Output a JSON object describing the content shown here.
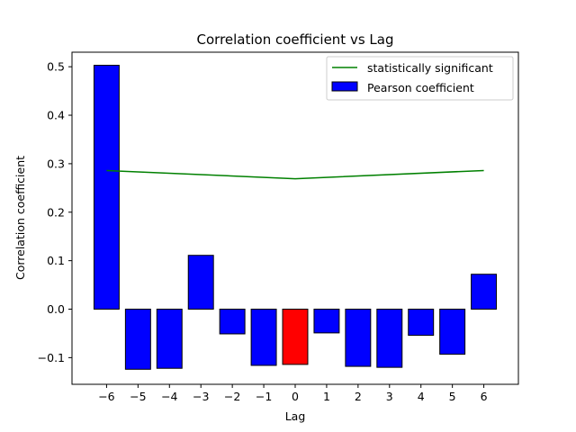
{
  "chart_data": {
    "type": "bar",
    "title": "Correlation coefficient vs Lag",
    "xlabel": "Lag",
    "ylabel": "Correlation coefficient",
    "categories": [
      -6,
      -5,
      -4,
      -3,
      -2,
      -1,
      0,
      1,
      2,
      3,
      4,
      5,
      6
    ],
    "xlim": [
      -7.1,
      7.1
    ],
    "ylim": [
      -0.155,
      0.53
    ],
    "xticks": [
      "−6",
      "−5",
      "−4",
      "−3",
      "−2",
      "−1",
      "0",
      "1",
      "2",
      "3",
      "4",
      "5",
      "6"
    ],
    "yticks": [
      {
        "value": -0.1,
        "label": "−0.1"
      },
      {
        "value": 0.0,
        "label": "0.0"
      },
      {
        "value": 0.1,
        "label": "0.1"
      },
      {
        "value": 0.2,
        "label": "0.2"
      },
      {
        "value": 0.3,
        "label": "0.3"
      },
      {
        "value": 0.4,
        "label": "0.4"
      },
      {
        "value": 0.5,
        "label": "0.5"
      }
    ],
    "grid": false,
    "legend_position": "upper right",
    "series": [
      {
        "name": "Pearson coefficient",
        "kind": "bar",
        "color": "#0000ff",
        "highlight_color": "#ff0000",
        "highlight_index": 6,
        "values": [
          0.503,
          -0.124,
          -0.122,
          0.111,
          -0.051,
          -0.116,
          -0.114,
          -0.049,
          -0.118,
          -0.12,
          -0.054,
          -0.093,
          0.072
        ]
      },
      {
        "name": "statistically significant",
        "kind": "line",
        "color": "#008000",
        "x": [
          -6,
          0,
          6
        ],
        "y": [
          0.286,
          0.269,
          0.286
        ]
      }
    ]
  }
}
